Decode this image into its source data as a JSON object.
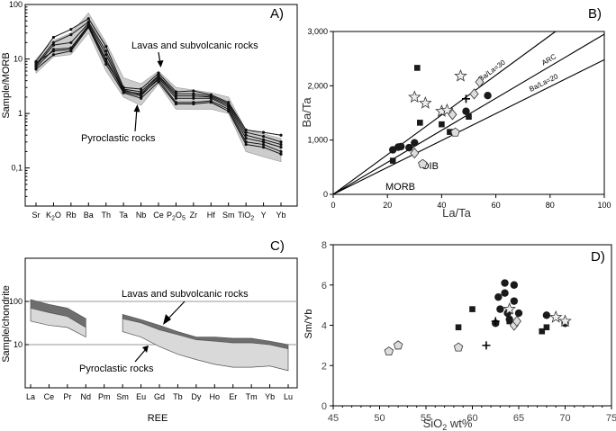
{
  "chart_data": [
    {
      "panel": "A)",
      "type": "line",
      "ylabel": "Sample/MORB",
      "yscale": "log",
      "ylim": [
        0.02,
        100
      ],
      "yticks": [
        "0,1",
        "1",
        "10",
        "100"
      ],
      "categories": [
        "Sr",
        "K2O",
        "Rb",
        "Ba",
        "Th",
        "Ta",
        "Nb",
        "Ce",
        "P2O5",
        "Zr",
        "Hf",
        "Sm",
        "TiO2",
        "Y",
        "Yb"
      ],
      "category_labels": [
        {
          "base": "Sr"
        },
        {
          "base": "K",
          "sub": "2",
          "tail": "O"
        },
        {
          "base": "Rb"
        },
        {
          "base": "Ba"
        },
        {
          "base": "Th"
        },
        {
          "base": "Ta"
        },
        {
          "base": "Nb"
        },
        {
          "base": "Ce"
        },
        {
          "base": "P",
          "sub": "2",
          "tail": "O",
          "sub2": "5"
        },
        {
          "base": "Zr"
        },
        {
          "base": "Hf"
        },
        {
          "base": "Sm"
        },
        {
          "base": "TiO",
          "sub": "2"
        },
        {
          "base": "Y"
        },
        {
          "base": "Yb"
        }
      ],
      "envelope": {
        "upper": [
          10,
          22,
          30,
          70,
          20,
          4.5,
          3.5,
          6,
          3,
          2.7,
          2.4,
          2,
          0.5,
          0.42,
          0.35
        ],
        "lower": [
          5.5,
          11,
          12,
          30,
          6,
          2,
          1.4,
          3.5,
          1.2,
          1.2,
          1.2,
          1,
          0.2,
          0.16,
          0.13
        ]
      },
      "series": [
        {
          "values": [
            9,
            25,
            35,
            55,
            17,
            3,
            2.8,
            5.5,
            2.5,
            2.6,
            2.2,
            1.6,
            0.5,
            0.45,
            0.4
          ]
        },
        {
          "values": [
            8,
            20,
            28,
            48,
            14,
            2.8,
            2.5,
            5,
            2.3,
            2.3,
            2.1,
            1.5,
            0.45,
            0.38,
            0.3
          ]
        },
        {
          "values": [
            7.5,
            18,
            20,
            45,
            12,
            2.6,
            2.3,
            4.8,
            2.1,
            2.1,
            2,
            1.4,
            0.4,
            0.33,
            0.27
          ]
        },
        {
          "values": [
            7,
            15,
            16,
            42,
            10,
            2.5,
            2.1,
            4.5,
            1.9,
            1.9,
            1.9,
            1.3,
            0.35,
            0.3,
            0.24
          ]
        },
        {
          "values": [
            8.5,
            14,
            15,
            40,
            9,
            2.7,
            2.2,
            4.2,
            1.6,
            1.6,
            1.7,
            1.2,
            0.3,
            0.27,
            0.2
          ]
        },
        {
          "values": [
            6.5,
            12,
            14,
            38,
            8,
            2.4,
            1.9,
            3.8,
            1.5,
            1.5,
            1.6,
            1.1,
            0.27,
            0.24,
            0.18
          ]
        }
      ],
      "annotations": [
        "Lavas and subvolcanic rocks",
        "Pyroclastic rocks"
      ]
    },
    {
      "panel": "B)",
      "type": "scatter",
      "xlabel": "La/Ta",
      "ylabel": "Ba/Ta",
      "xlim": [
        0,
        100
      ],
      "ylim": [
        0,
        3000
      ],
      "xticks": [
        0,
        20,
        40,
        60,
        80,
        100
      ],
      "yticks": [
        "0",
        "1,000",
        "2,000",
        "3,000"
      ],
      "reference_lines": [
        {
          "label": "Ba/La=30",
          "points": [
            [
              0,
              0
            ],
            [
              82,
              3000
            ]
          ]
        },
        {
          "label": "ARC",
          "points": [
            [
              0,
              0
            ],
            [
              100,
              2950
            ]
          ]
        },
        {
          "label": "Ba/La=20",
          "points": [
            [
              0,
              0
            ],
            [
              100,
              2480
            ]
          ]
        }
      ],
      "field_labels": [
        "OIB",
        "MORB"
      ],
      "series": [
        {
          "marker": "circle",
          "points": [
            [
              22,
              820
            ],
            [
              24,
              870
            ],
            [
              25,
              880
            ],
            [
              28,
              860
            ],
            [
              30,
              950
            ],
            [
              49,
              1530
            ],
            [
              57,
              1820
            ]
          ]
        },
        {
          "marker": "square",
          "points": [
            [
              22,
              620
            ],
            [
              31,
              2330
            ],
            [
              32,
              1320
            ],
            [
              40,
              1290
            ],
            [
              43,
              1150
            ],
            [
              50,
              1430
            ]
          ]
        },
        {
          "marker": "star",
          "points": [
            [
              30,
              1790
            ],
            [
              34,
              1680
            ],
            [
              40,
              1530
            ],
            [
              42,
              1550
            ],
            [
              47,
              2180
            ]
          ]
        },
        {
          "marker": "diamond",
          "points": [
            [
              30,
              760
            ],
            [
              44,
              1470
            ],
            [
              52,
              1850
            ],
            [
              54,
              2070
            ]
          ]
        },
        {
          "marker": "pentagon",
          "points": [
            [
              33,
              560
            ],
            [
              45,
              1140
            ]
          ]
        },
        {
          "marker": "plus",
          "points": [
            [
              49,
              1760
            ]
          ]
        }
      ]
    },
    {
      "panel": "C)",
      "type": "area",
      "xlabel": "REE",
      "ylabel": "Sample/chondrite",
      "yscale": "log",
      "ylim": [
        1,
        1000
      ],
      "yticks": [
        "10",
        "100"
      ],
      "categories": [
        "La",
        "Ce",
        "Pr",
        "Nd",
        "Pm",
        "Sm",
        "Eu",
        "Gd",
        "Tb",
        "Dy",
        "Ho",
        "Er",
        "Tm",
        "Yb",
        "Lu"
      ],
      "bands": [
        {
          "name": "Lavas and subvolcanic rocks",
          "segments": [
            {
              "indices": [
                0,
                1,
                2,
                3
              ],
              "upper": [
                110,
                85,
                70,
                40
              ],
              "lower": [
                70,
                55,
                45,
                25
              ]
            },
            {
              "indices": [
                5,
                6,
                7,
                8,
                9,
                10,
                11,
                12,
                13,
                14
              ],
              "upper": [
                50,
                38,
                28,
                20,
                15,
                15,
                14,
                14,
                12,
                10
              ],
              "lower": [
                40,
                32,
                22,
                17,
                13,
                12,
                11,
                11,
                10,
                8
              ]
            }
          ]
        },
        {
          "name": "Pyroclastic rocks",
          "segments": [
            {
              "indices": [
                0,
                1,
                2,
                3
              ],
              "upper": [
                70,
                55,
                45,
                25
              ],
              "lower": [
                35,
                28,
                25,
                15
              ]
            },
            {
              "indices": [
                5,
                6,
                7,
                8,
                9,
                10,
                11,
                12,
                13,
                14
              ],
              "upper": [
                40,
                32,
                22,
                17,
                13,
                12,
                11,
                11,
                10,
                8
              ],
              "lower": [
                20,
                15,
                9,
                6,
                4.5,
                3.5,
                3,
                3,
                3.2,
                2.5
              ]
            }
          ]
        }
      ],
      "reference_values": [
        100,
        10
      ],
      "annotations": [
        "Lavas and subvolcanic rocks",
        "Pyroclastic rocks"
      ]
    },
    {
      "panel": "D)",
      "type": "scatter",
      "xlabel": "SiO2 wt%",
      "ylabel": "Sm/Yb",
      "xlim": [
        45,
        75
      ],
      "ylim": [
        0,
        8
      ],
      "xticks": [
        45,
        50,
        55,
        60,
        65,
        70,
        75
      ],
      "yticks": [
        0,
        2,
        4,
        6,
        8
      ],
      "series": [
        {
          "marker": "circle",
          "points": [
            [
              62.5,
              4.1
            ],
            [
              62.8,
              5.4
            ],
            [
              63.0,
              4.8
            ],
            [
              63.5,
              5.6
            ],
            [
              63.5,
              6.1
            ],
            [
              63.8,
              4.6
            ],
            [
              64.0,
              4.3
            ],
            [
              64.5,
              5.2
            ],
            [
              64.5,
              6.0
            ],
            [
              65.0,
              4.6
            ],
            [
              68.0,
              4.5
            ],
            [
              70.0,
              4.1
            ]
          ]
        },
        {
          "marker": "square",
          "points": [
            [
              58.5,
              3.9
            ],
            [
              60.0,
              4.8
            ],
            [
              64.0,
              4.2
            ],
            [
              67.5,
              3.7
            ],
            [
              68.0,
              3.9
            ]
          ]
        },
        {
          "marker": "star",
          "points": [
            [
              64.0,
              4.8
            ],
            [
              69.0,
              4.4
            ],
            [
              70.0,
              4.2
            ]
          ]
        },
        {
          "marker": "diamond",
          "points": [
            [
              64.5,
              4.0
            ],
            [
              64.8,
              4.2
            ]
          ]
        },
        {
          "marker": "pentagon",
          "points": [
            [
              51.0,
              2.7
            ],
            [
              52.0,
              3.0
            ],
            [
              58.5,
              2.9
            ]
          ]
        },
        {
          "marker": "plus",
          "points": [
            [
              61.5,
              3.0
            ],
            [
              62.5,
              4.2
            ]
          ]
        }
      ]
    }
  ]
}
